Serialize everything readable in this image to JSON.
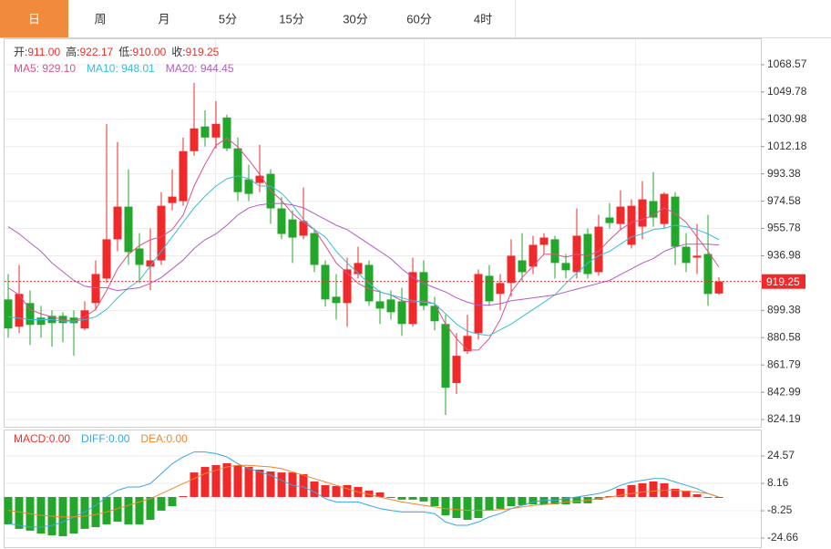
{
  "tabs": {
    "items": [
      "日",
      "周",
      "月",
      "5分",
      "15分",
      "30分",
      "60分",
      "4时"
    ],
    "selected": 0,
    "selected_color": "#f08a3c"
  },
  "chart_data": [
    {
      "type": "candlestick",
      "up_color": "#f0292a",
      "down_color": "#22a72b",
      "grid": true,
      "ylim": [
        819.2,
        1086.1
      ],
      "yticks": [
        824.19,
        842.99,
        861.79,
        880.58,
        899.38,
        936.98,
        955.78,
        974.58,
        993.38,
        1012.18,
        1030.98,
        1049.78,
        1068.57
      ],
      "quote": [
        {
          "label": "开:",
          "value": "911.00"
        },
        {
          "label": "高:",
          "value": "922.17"
        },
        {
          "label": "低:",
          "value": "910.00"
        },
        {
          "label": "收:",
          "value": "919.25"
        }
      ],
      "quote_value_color": "#e8322c",
      "legend_separator": ": ",
      "open": [
        906.9,
        888.1,
        904.4,
        894.4,
        895.6,
        895.6,
        894.4,
        886.9,
        904.4,
        921.3,
        948.3,
        970.8,
        942.0,
        929.5,
        933.8,
        973.3,
        974.6,
        1009.0,
        1026.0,
        1018.4,
        1032.2,
        1010.9,
        989.6,
        987.1,
        993.4,
        969.6,
        962.0,
        950.8,
        952.6,
        930.7,
        908.8,
        904.4,
        924.4,
        930.7,
        905.6,
        906.9,
        905.6,
        890.0,
        925.7,
        902.5,
        890.0,
        849.3,
        871.2,
        883.7,
        923.2,
        910.7,
        918.2,
        933.8,
        929.5,
        944.5,
        948.3,
        932.0,
        925.7,
        952.0,
        925.7,
        963.3,
        958.9,
        944.5,
        957.0,
        974.6,
        958.9,
        977.7,
        943.2,
        935.7,
        938.2,
        911.0
      ],
      "high": [
        924.4,
        930.7,
        913.2,
        902.5,
        899.4,
        898.1,
        899.4,
        905.6,
        933.8,
        1027.8,
        1015.3,
        996.5,
        952.6,
        955.8,
        980.8,
        996.5,
        1018.4,
        1056.0,
        1037.2,
        1043.5,
        1034.1,
        1018.4,
        999.6,
        1013.4,
        996.5,
        977.7,
        968.3,
        984.0,
        955.8,
        933.8,
        924.4,
        935.7,
        943.2,
        933.8,
        913.2,
        913.2,
        915.0,
        935.7,
        933.8,
        908.8,
        896.3,
        883.7,
        896.3,
        927.6,
        930.7,
        924.4,
        948.3,
        952.6,
        950.8,
        952.6,
        950.8,
        938.2,
        969.6,
        955.8,
        965.2,
        973.3,
        982.1,
        975.8,
        988.4,
        994.6,
        980.8,
        980.8,
        952.6,
        958.9,
        965.2,
        922.17
      ],
      "low": [
        880.6,
        883.7,
        875.6,
        880.6,
        874.3,
        877.5,
        868.1,
        885.6,
        899.4,
        918.2,
        940.1,
        930.7,
        918.2,
        913.2,
        930.7,
        968.3,
        971.4,
        1005.9,
        1012.2,
        1010.9,
        1009.0,
        974.6,
        974.6,
        980.8,
        958.9,
        948.3,
        932.0,
        948.3,
        925.7,
        901.9,
        893.1,
        888.1,
        921.3,
        902.5,
        890.0,
        893.1,
        881.8,
        888.1,
        899.4,
        885.6,
        827.3,
        841.7,
        869.3,
        879.3,
        902.5,
        899.4,
        908.8,
        919.4,
        924.4,
        938.2,
        921.3,
        921.3,
        921.3,
        921.3,
        923.2,
        955.8,
        954.5,
        942.0,
        948.3,
        957.0,
        955.8,
        930.7,
        925.7,
        924.4,
        902.5,
        910.0
      ],
      "close": [
        886.9,
        910.7,
        889.4,
        889.4,
        890.6,
        890.6,
        890.6,
        899.4,
        924.4,
        948.3,
        970.8,
        939.5,
        930.7,
        933.8,
        971.4,
        977.7,
        1009.0,
        1024.7,
        1018.4,
        1027.8,
        1010.9,
        980.8,
        979.6,
        992.1,
        969.6,
        952.0,
        949.5,
        960.8,
        930.7,
        906.9,
        904.4,
        927.6,
        932.0,
        905.6,
        900.6,
        898.1,
        890.0,
        925.7,
        902.5,
        891.9,
        846.1,
        868.1,
        881.8,
        924.4,
        905.6,
        918.2,
        937.0,
        925.7,
        944.5,
        949.5,
        932.0,
        927.0,
        950.8,
        924.4,
        957.0,
        959.5,
        970.8,
        971.4,
        975.8,
        963.3,
        979.6,
        943.2,
        932.0,
        937.0,
        910.7,
        919.25
      ],
      "last_price_color": "#f0292a",
      "series": [
        {
          "name": "MA5",
          "value_label": "929.10",
          "color": "#e0508c",
          "values": [
            915,
            910,
            900,
            897,
            895,
            893,
            892,
            895,
            900,
            913,
            928,
            938,
            944,
            948,
            950,
            955,
            965,
            985,
            1000,
            1013,
            1018,
            1012,
            1003,
            993,
            982,
            975,
            966,
            960,
            955,
            944,
            932,
            925,
            918,
            914,
            912,
            910,
            906,
            905,
            906,
            904,
            890,
            880,
            872,
            872,
            880,
            893,
            912,
            922,
            930,
            938,
            938,
            936,
            938,
            937,
            940,
            948,
            955,
            960,
            962,
            965,
            970,
            966,
            960,
            950,
            940,
            929.1
          ]
        },
        {
          "name": "MA10",
          "value_label": "948.01",
          "color": "#3bbbd8",
          "values": [
            895,
            894,
            893,
            893,
            893,
            892,
            892,
            893,
            895,
            900,
            908,
            915,
            920,
            930,
            940,
            950,
            960,
            970,
            978,
            985,
            990,
            992,
            990,
            985,
            985,
            980,
            972,
            962,
            955,
            950,
            940,
            932,
            925,
            918,
            912,
            910,
            908,
            906,
            905,
            904,
            897,
            890,
            885,
            883,
            882,
            886,
            890,
            895,
            900,
            905,
            910,
            918,
            925,
            932,
            937,
            940,
            945,
            950,
            952,
            955,
            956,
            958,
            957,
            955,
            952,
            948.01
          ]
        },
        {
          "name": "MA20",
          "value_label": "944.45",
          "color": "#b45ac8",
          "values": [
            957,
            952,
            946,
            940,
            932,
            926,
            920,
            916,
            915,
            915,
            913,
            914,
            915,
            918,
            922,
            928,
            934,
            942,
            948,
            952,
            958,
            965,
            970,
            972,
            973,
            973,
            972,
            970,
            966,
            962,
            958,
            955,
            950,
            945,
            940,
            935,
            928,
            922,
            918,
            915,
            912,
            908,
            905,
            903,
            903,
            904,
            906,
            907,
            908,
            909,
            910,
            912,
            914,
            916,
            918,
            920,
            924,
            928,
            932,
            935,
            940,
            943,
            945,
            945,
            945,
            944.45
          ]
        }
      ]
    },
    {
      "type": "macd",
      "up_color": "#f0292a",
      "down_color": "#22a72b",
      "grid": true,
      "ylim": [
        -30.1,
        39.9
      ],
      "yticks": [
        -24.66,
        -8.25,
        8.16,
        24.57
      ],
      "legend_separator": ":",
      "histogram_name": "MACD",
      "histogram_value_label": "0.00",
      "histogram_color": "#e8322c",
      "histogram": [
        -16.4,
        -19.1,
        -20.2,
        -21.9,
        -23.0,
        -23.5,
        -21.9,
        -19.1,
        -18.1,
        -16.4,
        -14.8,
        -16.4,
        -16.4,
        -13.7,
        -8.2,
        -5.5,
        0.5,
        14.7,
        18.0,
        19.1,
        20.2,
        19.1,
        18.0,
        16.4,
        15.3,
        14.7,
        14.7,
        13.7,
        9.3,
        7.1,
        6.6,
        7.1,
        6.0,
        3.8,
        2.7,
        -0.5,
        -1.6,
        -1.6,
        -2.7,
        -5.5,
        -11.0,
        -12.6,
        -13.7,
        -12.6,
        -8.2,
        -7.1,
        -5.5,
        -4.9,
        -4.4,
        -4.4,
        -4.4,
        -4.4,
        -3.8,
        -3.8,
        -1.6,
        0.5,
        4.9,
        7.1,
        8.2,
        9.3,
        8.2,
        4.9,
        3.8,
        1.6,
        -0.5,
        0
      ],
      "series": [
        {
          "name": "DIFF",
          "value_label": "0.00",
          "color": "#3aa6e0",
          "values": [
            -16,
            -17,
            -18,
            -18,
            -17,
            -15,
            -12,
            -9,
            -5,
            0,
            4,
            6,
            6,
            8,
            14,
            20,
            24,
            27,
            27,
            26,
            24,
            20,
            17,
            15,
            13,
            10,
            7,
            6,
            3,
            -1,
            -3,
            -3,
            -3,
            -5,
            -7,
            -8,
            -9,
            -9,
            -9,
            -10,
            -15,
            -17,
            -17,
            -15,
            -12,
            -10,
            -7,
            -5,
            -3,
            -2,
            -2,
            -1,
            0,
            1,
            2,
            4,
            7,
            9,
            10,
            11,
            11,
            9,
            7,
            5,
            2,
            0
          ]
        },
        {
          "name": "DEA",
          "value_label": "0.00",
          "color": "#f0862a",
          "values": [
            -8,
            -9,
            -10,
            -11,
            -11.5,
            -12,
            -12,
            -11.5,
            -10.5,
            -9,
            -7,
            -5,
            -3,
            -1,
            2,
            5,
            8,
            11,
            14,
            16,
            18,
            19,
            19,
            18.5,
            18,
            17,
            15,
            13,
            11,
            9,
            7,
            5,
            3,
            1.5,
            0,
            -1.5,
            -3,
            -4,
            -5,
            -6,
            -7,
            -7.5,
            -8,
            -8,
            -8,
            -7.5,
            -7,
            -6,
            -5,
            -4.5,
            -4,
            -3,
            -2.5,
            -2,
            -1,
            0,
            1,
            2,
            3,
            3.5,
            4,
            4,
            3.5,
            3,
            2,
            0
          ]
        }
      ]
    }
  ]
}
